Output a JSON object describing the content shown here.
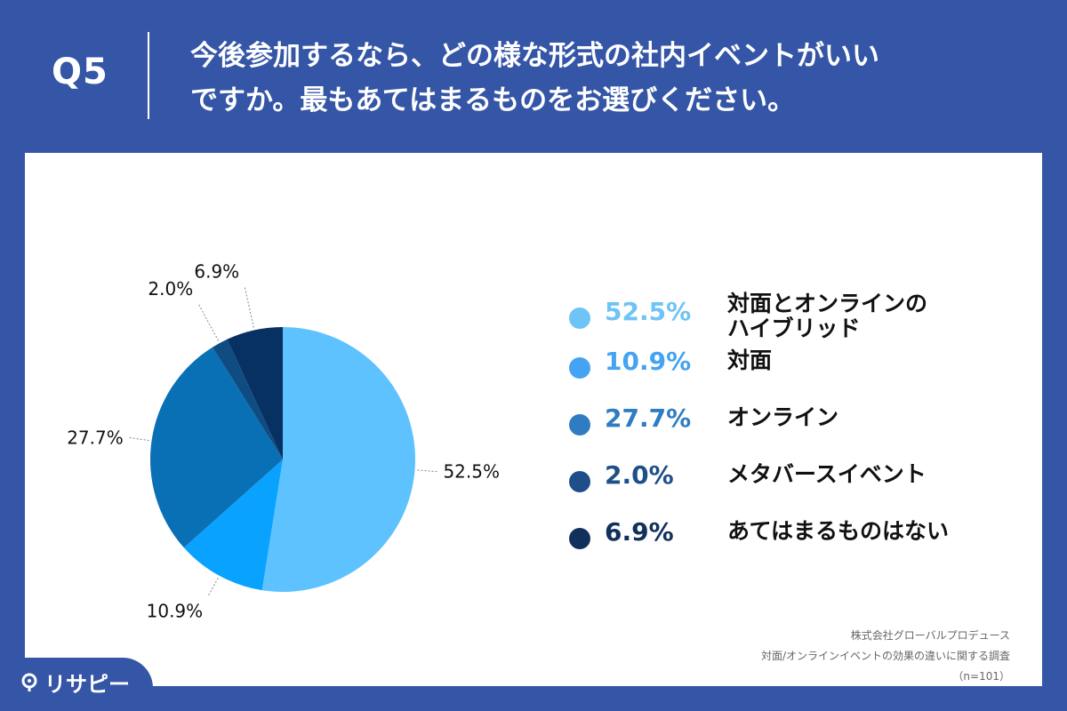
{
  "header": {
    "qnum": "Q5",
    "question_line1": "今後参加するなら、どの様な形式の社内イベントがいい",
    "question_line2": "ですか。最もあてはまるものをお選びください。"
  },
  "chart_data": {
    "type": "pie",
    "title": "",
    "slices": [
      {
        "label": "対面とオンラインのハイブリッド",
        "label_line1": "対面とオンラインの",
        "label_line2": "ハイブリッド",
        "value": 52.5,
        "display": "52.5%",
        "color": "#5ec2ff"
      },
      {
        "label": "対面",
        "value": 10.9,
        "display": "10.9%",
        "color": "#09a2ff"
      },
      {
        "label": "オンライン",
        "value": 27.7,
        "display": "27.7%",
        "color": "#0a70b5"
      },
      {
        "label": "メタバースイベント",
        "value": 2.0,
        "display": "2.0%",
        "color": "#0f4c82"
      },
      {
        "label": "あてはまるものはない",
        "value": 6.9,
        "display": "6.9%",
        "color": "#073063"
      }
    ],
    "legend_colors": [
      "#6ec3f7",
      "#44a3f2",
      "#2f7cc2",
      "#1e4f88",
      "#12305c"
    ],
    "start_angle": "top",
    "direction": "clockwise",
    "legend_position": "right"
  },
  "source": {
    "line1": "株式会社グローバルプロデュース",
    "line2": "対面/オンラインイベントの効果の違いに関する調査",
    "line3": "（n=101）"
  },
  "logo": {
    "text": "リサピー",
    "icon": "logo-pin-icon"
  }
}
